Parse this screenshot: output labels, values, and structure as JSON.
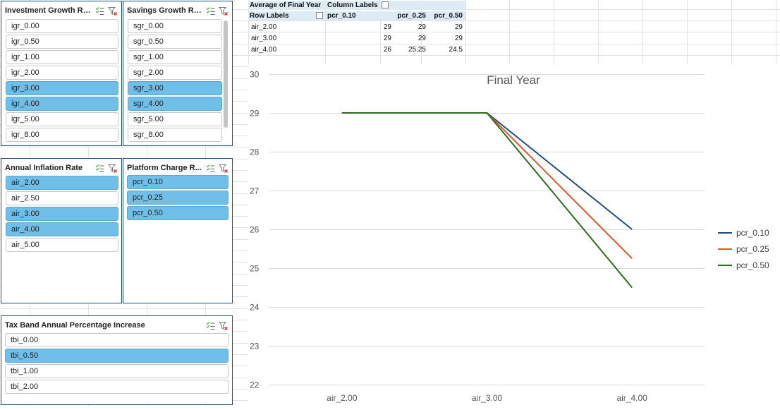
{
  "slicers": {
    "igr": {
      "title": "Investment Growth Rate",
      "items": [
        {
          "label": "igr_0.00",
          "selected": false
        },
        {
          "label": "igr_0.50",
          "selected": false
        },
        {
          "label": "igr_1.00",
          "selected": false
        },
        {
          "label": "igr_2.00",
          "selected": false
        },
        {
          "label": "igr_3.00",
          "selected": true
        },
        {
          "label": "igr_4.00",
          "selected": true
        },
        {
          "label": "igr_5.00",
          "selected": false
        },
        {
          "label": "igr_8.00",
          "selected": false
        }
      ]
    },
    "sgr": {
      "title": "Savings Growth Rate",
      "items": [
        {
          "label": "sgr_0.00",
          "selected": false
        },
        {
          "label": "sgr_0.50",
          "selected": false
        },
        {
          "label": "sgr_1.00",
          "selected": false
        },
        {
          "label": "sgr_2.00",
          "selected": false
        },
        {
          "label": "sgr_3.00",
          "selected": true
        },
        {
          "label": "sgr_4.00",
          "selected": true
        },
        {
          "label": "sgr_5.00",
          "selected": false
        },
        {
          "label": "sgr_8.00",
          "selected": false
        }
      ]
    },
    "air": {
      "title": "Annual Inflation Rate",
      "items": [
        {
          "label": "air_2.00",
          "selected": true
        },
        {
          "label": "air_2.50",
          "selected": false
        },
        {
          "label": "air_3.00",
          "selected": true
        },
        {
          "label": "air_4.00",
          "selected": true
        },
        {
          "label": "air_5.00",
          "selected": false
        }
      ]
    },
    "pcr": {
      "title": "Platform Charge R...",
      "items": [
        {
          "label": "pcr_0.10",
          "selected": true
        },
        {
          "label": "pcr_0.25",
          "selected": true
        },
        {
          "label": "pcr_0.50",
          "selected": true
        }
      ]
    },
    "tbi": {
      "title": "Tax Band Annual Percentage Increase",
      "items": [
        {
          "label": "tbi_0.00",
          "selected": false
        },
        {
          "label": "tbi_0.50",
          "selected": true
        },
        {
          "label": "tbi_1.00",
          "selected": false
        },
        {
          "label": "tbi_2.00",
          "selected": false
        }
      ]
    }
  },
  "pivot": {
    "value_label": "Average of Final Year",
    "column_labels": "Column Labels",
    "row_labels": "Row Labels",
    "columns": [
      "pcr_0.10",
      "pcr_0.25",
      "pcr_0.50"
    ],
    "rows": [
      {
        "label": "air_2.00",
        "values": [
          "29",
          "29",
          "29"
        ]
      },
      {
        "label": "air_3.00",
        "values": [
          "29",
          "29",
          "29"
        ]
      },
      {
        "label": "air_4.00",
        "values": [
          "26",
          "25.25",
          "24.5"
        ]
      }
    ]
  },
  "chart_data": {
    "type": "line",
    "title": "Final Year",
    "categories": [
      "air_2.00",
      "air_3.00",
      "air_4.00"
    ],
    "series": [
      {
        "name": "pcr_0.10",
        "values": [
          29,
          29,
          26
        ],
        "color": "#1f4e79"
      },
      {
        "name": "pcr_0.25",
        "values": [
          29,
          29,
          25.25
        ],
        "color": "#e4572e"
      },
      {
        "name": "pcr_0.50",
        "values": [
          29,
          29,
          24.5
        ],
        "color": "#2e6b1f"
      }
    ],
    "ylim": [
      22,
      30
    ],
    "yticks": [
      22,
      23,
      24,
      25,
      26,
      27,
      28,
      29,
      30
    ],
    "grid": true,
    "legend": "right"
  },
  "colors": {
    "slicer_selected": "#70bfe8",
    "slicer_border": "#1f4e79",
    "pivot_header": "#ddebf7"
  }
}
